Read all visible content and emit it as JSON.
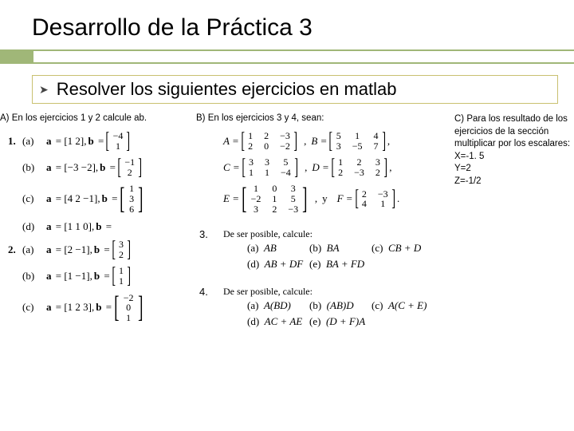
{
  "title": "Desarrollo de la Práctica 3",
  "subtitle": "Resolver los siguientes ejercicios en matlab",
  "sectionA": {
    "label": "A) En los ejercicios 1 y 2 calcule ab.",
    "group1_num": "1.",
    "items1": [
      {
        "lbl": "(a)",
        "a": "a = [1   2],",
        "b_cols": [
          [
            "−4",
            "1"
          ]
        ]
      },
      {
        "lbl": "(b)",
        "a": "a = [−3   −2],",
        "b_cols": [
          [
            "−1",
            "2"
          ]
        ]
      },
      {
        "lbl": "(c)",
        "a": "a = [4   2   −1],",
        "b_cols": [
          [
            "1",
            "3",
            "6"
          ]
        ]
      },
      {
        "lbl": "(d)",
        "a": "a = [1   1   0],",
        "btxt": "b ="
      }
    ],
    "group2_num": "2.",
    "items2": [
      {
        "lbl": "(a)",
        "a": "a = [2   −1],",
        "b_cols": [
          [
            "3",
            "2"
          ]
        ]
      },
      {
        "lbl": "(b)",
        "a": "a = [1   −1],",
        "b_cols": [
          [
            "1",
            "1"
          ]
        ]
      },
      {
        "lbl": "(c)",
        "a": "a = [1   2   3],",
        "b_cols": [
          [
            "−2",
            "0",
            "1"
          ]
        ]
      }
    ]
  },
  "sectionB": {
    "label": "B) En los ejercicios 3 y 4, sean:",
    "matrices": {
      "A": {
        "name": "A =",
        "cols": [
          [
            "1",
            "2"
          ],
          [
            "2",
            "0"
          ],
          [
            "−3",
            "−2"
          ]
        ]
      },
      "B": {
        "name": "B =",
        "cols": [
          [
            "5",
            "3"
          ],
          [
            "1",
            "−5"
          ],
          [
            "4",
            "7"
          ]
        ]
      },
      "C": {
        "name": "C =",
        "cols": [
          [
            "3",
            "1"
          ],
          [
            "3",
            "1"
          ],
          [
            "5",
            "−4"
          ]
        ]
      },
      "D": {
        "name": "D =",
        "cols": [
          [
            "1",
            "2"
          ],
          [
            "2",
            "−3"
          ],
          [
            "3",
            "2"
          ]
        ]
      },
      "E": {
        "name": "E =",
        "cols": [
          [
            "1",
            "−2",
            "3"
          ],
          [
            "0",
            "1",
            "2"
          ],
          [
            "3",
            "5",
            "−3"
          ]
        ]
      },
      "y": "y",
      "F": {
        "name": "F =",
        "cols": [
          [
            "2",
            "4"
          ],
          [
            "−3",
            "1"
          ]
        ]
      }
    },
    "ex3": {
      "num": "3.",
      "lead": "De ser posible, calcule:",
      "lines": [
        [
          {
            "l": "(a)",
            "t": "AB"
          },
          {
            "l": "(b)",
            "t": "BA"
          },
          {
            "l": "(c)",
            "t": "CB + D"
          }
        ],
        [
          {
            "l": "(d)",
            "t": "AB + DF"
          },
          {
            "l": "(e)",
            "t": "BA + FD"
          }
        ]
      ]
    },
    "ex4": {
      "num": "4.",
      "lead": "De ser posible, calcule:",
      "lines": [
        [
          {
            "l": "(a)",
            "t": "A(BD)"
          },
          {
            "l": "(b)",
            "t": "(AB)D"
          },
          {
            "l": "(c)",
            "t": "A(C + E)"
          }
        ],
        [
          {
            "l": "(d)",
            "t": "AC + AE"
          },
          {
            "l": "(e)",
            "t": "(D + F)A"
          }
        ]
      ]
    }
  },
  "sectionC": {
    "text": "C) Para los resultado de los ejercicios de la sección multiplicar por los escalares:",
    "x": "X=-1. 5",
    "y": "Y=2",
    "z": "Z=-1/2"
  },
  "colors": {
    "accent": "#a0b778",
    "boxBorder": "#c9c070"
  }
}
